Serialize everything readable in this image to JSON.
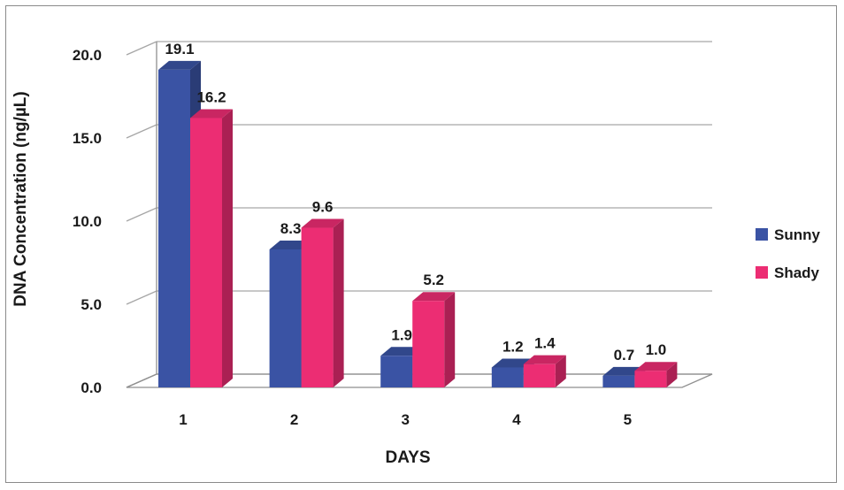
{
  "chart_data": {
    "type": "bar",
    "title": "",
    "xlabel": "DAYS",
    "ylabel": "DNA Concentration (ng/µL)",
    "categories": [
      "1",
      "2",
      "3",
      "4",
      "5"
    ],
    "ylim": [
      0,
      20
    ],
    "yticks": [
      "0.0",
      "5.0",
      "10.0",
      "15.0",
      "20.0"
    ],
    "grid": true,
    "legend_position": "right",
    "series": [
      {
        "name": "Sunny",
        "values": [
          19.1,
          8.3,
          1.9,
          1.2,
          0.7
        ],
        "labels": [
          "19.1",
          "8.3",
          "1.9",
          "1.2",
          "0.7"
        ],
        "color": "#3a53a4"
      },
      {
        "name": "Shady",
        "values": [
          16.2,
          9.6,
          5.2,
          1.4,
          1.0
        ],
        "labels": [
          "16.2",
          "9.6",
          "5.2",
          "1.4",
          "1.0"
        ],
        "color": "#ec2d73"
      }
    ]
  }
}
